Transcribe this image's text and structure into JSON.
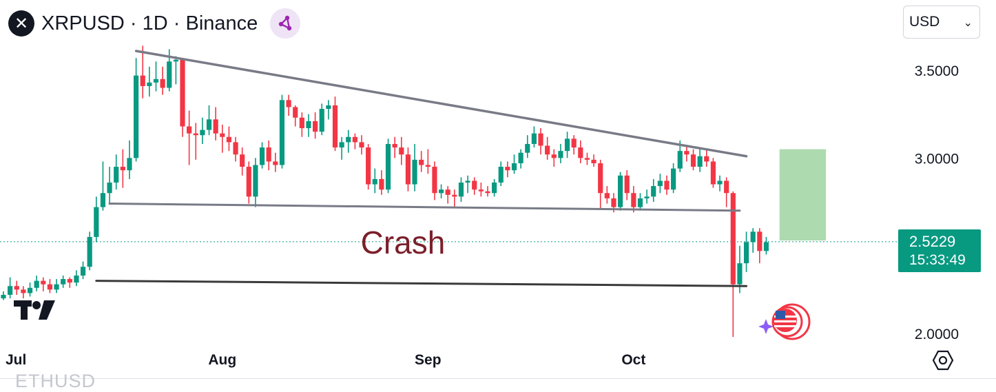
{
  "header": {
    "title": "XRPUSD · 1D · Binance",
    "logo_glyph": "✕",
    "share_icon": "share-nodes-icon"
  },
  "currency_select": {
    "value": "USD",
    "chevron": "⌄"
  },
  "price_badge": {
    "price": "2.5229",
    "countdown": "15:33:49",
    "color": "#089981"
  },
  "watermark_below": "ETHUSD",
  "colors": {
    "up": "#089981",
    "down": "#f23645",
    "trendline": "#787b86",
    "crash_line": "#3a3a3a",
    "crash_text": "#7b1f2a",
    "target_box": "#a5d6a7",
    "price_line": "#089981"
  },
  "chart_data": {
    "type": "candlestick",
    "symbol": "XRPUSD",
    "interval": "1D",
    "exchange": "Binance",
    "y_ticks": [
      "3.5000",
      "3.0000",
      "2.0000"
    ],
    "y_tick_values": [
      3.5,
      3.0,
      2.0
    ],
    "ylim": [
      1.98,
      3.6
    ],
    "x_ticks": [
      "Jul",
      "Aug",
      "Sep",
      "Oct"
    ],
    "x_tick_index": [
      1,
      33,
      64,
      95
    ],
    "last_price": 2.5229,
    "candles": [
      [
        2.2,
        2.22,
        2.24,
        2.19
      ],
      [
        2.22,
        2.27,
        2.32,
        2.2
      ],
      [
        2.27,
        2.25,
        2.3,
        2.22
      ],
      [
        2.25,
        2.23,
        2.27,
        2.2
      ],
      [
        2.23,
        2.26,
        2.29,
        2.21
      ],
      [
        2.26,
        2.3,
        2.33,
        2.24
      ],
      [
        2.3,
        2.28,
        2.32,
        2.24
      ],
      [
        2.28,
        2.25,
        2.31,
        2.23
      ],
      [
        2.25,
        2.28,
        2.31,
        2.23
      ],
      [
        2.28,
        2.31,
        2.33,
        2.26
      ],
      [
        2.31,
        2.29,
        2.32,
        2.26
      ],
      [
        2.29,
        2.33,
        2.36,
        2.27
      ],
      [
        2.33,
        2.38,
        2.41,
        2.31
      ],
      [
        2.38,
        2.55,
        2.58,
        2.36
      ],
      [
        2.55,
        2.72,
        2.78,
        2.52
      ],
      [
        2.72,
        2.8,
        2.98,
        2.7
      ],
      [
        2.8,
        2.86,
        2.95,
        2.74
      ],
      [
        2.86,
        2.95,
        3.02,
        2.82
      ],
      [
        2.95,
        2.93,
        3.05,
        2.83
      ],
      [
        2.93,
        3.0,
        3.1,
        2.88
      ],
      [
        3.0,
        3.47,
        3.57,
        2.98
      ],
      [
        3.47,
        3.41,
        3.64,
        3.34
      ],
      [
        3.41,
        3.43,
        3.52,
        3.35
      ],
      [
        3.43,
        3.45,
        3.55,
        3.38
      ],
      [
        3.45,
        3.4,
        3.52,
        3.36
      ],
      [
        3.4,
        3.55,
        3.62,
        3.38
      ],
      [
        3.55,
        3.56,
        3.58,
        3.42
      ],
      [
        3.56,
        3.18,
        3.57,
        3.12
      ],
      [
        3.18,
        3.14,
        3.27,
        2.96
      ],
      [
        3.14,
        3.13,
        3.2,
        2.99
      ],
      [
        3.13,
        3.16,
        3.23,
        3.08
      ],
      [
        3.16,
        3.22,
        3.3,
        3.13
      ],
      [
        3.22,
        3.14,
        3.29,
        3.1
      ],
      [
        3.14,
        3.12,
        3.19,
        3.03
      ],
      [
        3.12,
        3.09,
        3.18,
        3.04
      ],
      [
        3.09,
        3.02,
        3.12,
        2.98
      ],
      [
        3.02,
        2.95,
        3.06,
        2.9
      ],
      [
        2.95,
        2.78,
        2.98,
        2.74
      ],
      [
        2.78,
        2.96,
        3.0,
        2.72
      ],
      [
        2.96,
        3.06,
        3.09,
        2.94
      ],
      [
        3.06,
        2.98,
        3.1,
        2.93
      ],
      [
        2.98,
        2.96,
        3.03,
        2.92
      ],
      [
        2.96,
        3.33,
        3.36,
        2.94
      ],
      [
        3.33,
        3.29,
        3.36,
        3.24
      ],
      [
        3.29,
        3.23,
        3.3,
        3.18
      ],
      [
        3.23,
        3.17,
        3.26,
        3.12
      ],
      [
        3.17,
        3.21,
        3.25,
        3.12
      ],
      [
        3.21,
        3.15,
        3.26,
        3.11
      ],
      [
        3.15,
        3.28,
        3.31,
        3.13
      ],
      [
        3.28,
        3.3,
        3.33,
        3.22
      ],
      [
        3.3,
        3.06,
        3.35,
        3.04
      ],
      [
        3.06,
        3.09,
        3.12,
        2.99
      ],
      [
        3.09,
        3.12,
        3.16,
        3.03
      ],
      [
        3.12,
        3.09,
        3.14,
        3.05
      ],
      [
        3.09,
        3.06,
        3.13,
        3.02
      ],
      [
        3.06,
        2.85,
        3.08,
        2.82
      ],
      [
        2.85,
        2.88,
        2.94,
        2.8
      ],
      [
        2.88,
        2.82,
        2.93,
        2.79
      ],
      [
        2.82,
        3.08,
        3.11,
        2.8
      ],
      [
        3.08,
        3.06,
        3.12,
        3.0
      ],
      [
        3.06,
        3.02,
        3.12,
        2.96
      ],
      [
        3.02,
        2.85,
        3.06,
        2.81
      ],
      [
        2.85,
        2.99,
        3.08,
        2.81
      ],
      [
        2.99,
        2.96,
        3.04,
        2.92
      ],
      [
        2.96,
        2.95,
        3.05,
        2.91
      ],
      [
        2.95,
        2.8,
        2.98,
        2.76
      ],
      [
        2.8,
        2.82,
        2.85,
        2.77
      ],
      [
        2.82,
        2.79,
        2.84,
        2.74
      ],
      [
        2.79,
        2.78,
        2.82,
        2.72
      ],
      [
        2.78,
        2.86,
        2.89,
        2.75
      ],
      [
        2.86,
        2.87,
        2.9,
        2.8
      ],
      [
        2.87,
        2.82,
        2.89,
        2.79
      ],
      [
        2.82,
        2.81,
        2.86,
        2.78
      ],
      [
        2.81,
        2.8,
        2.84,
        2.78
      ],
      [
        2.8,
        2.86,
        2.88,
        2.78
      ],
      [
        2.86,
        2.95,
        2.98,
        2.84
      ],
      [
        2.95,
        2.93,
        2.98,
        2.89
      ],
      [
        2.93,
        2.97,
        3.02,
        2.91
      ],
      [
        2.97,
        3.03,
        3.05,
        2.94
      ],
      [
        3.03,
        3.08,
        3.13,
        3.0
      ],
      [
        3.08,
        3.14,
        3.18,
        3.06
      ],
      [
        3.14,
        3.07,
        3.17,
        3.02
      ],
      [
        3.07,
        3.02,
        3.12,
        2.99
      ],
      [
        3.02,
        3.0,
        3.05,
        2.95
      ],
      [
        3.0,
        3.04,
        3.08,
        2.97
      ],
      [
        3.04,
        3.11,
        3.15,
        3.0
      ],
      [
        3.11,
        3.06,
        3.13,
        3.02
      ],
      [
        3.06,
        3.0,
        3.1,
        2.97
      ],
      [
        3.0,
        2.99,
        3.03,
        2.96
      ],
      [
        2.99,
        2.97,
        3.02,
        2.95
      ],
      [
        2.97,
        2.8,
        2.99,
        2.71
      ],
      [
        2.8,
        2.77,
        2.84,
        2.74
      ],
      [
        2.77,
        2.72,
        2.8,
        2.69
      ],
      [
        2.72,
        2.9,
        2.92,
        2.7
      ],
      [
        2.9,
        2.8,
        2.93,
        2.76
      ],
      [
        2.8,
        2.72,
        2.84,
        2.69
      ],
      [
        2.72,
        2.77,
        2.8,
        2.7
      ],
      [
        2.77,
        2.78,
        2.82,
        2.74
      ],
      [
        2.78,
        2.84,
        2.88,
        2.75
      ],
      [
        2.84,
        2.87,
        2.91,
        2.8
      ],
      [
        2.87,
        2.82,
        2.9,
        2.79
      ],
      [
        2.82,
        2.94,
        2.97,
        2.8
      ],
      [
        2.94,
        3.04,
        3.1,
        2.92
      ],
      [
        3.04,
        3.02,
        3.07,
        2.98
      ],
      [
        3.02,
        2.95,
        3.05,
        2.93
      ],
      [
        2.95,
        3.01,
        3.06,
        2.92
      ],
      [
        3.01,
        2.98,
        3.05,
        2.95
      ],
      [
        2.98,
        2.85,
        3.0,
        2.83
      ],
      [
        2.85,
        2.87,
        2.9,
        2.81
      ],
      [
        2.87,
        2.8,
        2.89,
        2.72
      ],
      [
        2.8,
        2.28,
        2.81,
        1.98
      ],
      [
        2.28,
        2.4,
        2.5,
        2.23
      ],
      [
        2.4,
        2.52,
        2.58,
        2.35
      ],
      [
        2.52,
        2.58,
        2.6,
        2.46
      ],
      [
        2.58,
        2.47,
        2.6,
        2.4
      ],
      [
        2.47,
        2.52,
        2.55,
        2.45
      ]
    ],
    "annotations": {
      "descending_trendline": {
        "from": [
          20,
          3.61
        ],
        "to": [
          112,
          3.01
        ]
      },
      "support_line": {
        "from": [
          16,
          2.74
        ],
        "to": [
          111,
          2.7
        ]
      },
      "crash_line": {
        "from": [
          14,
          2.3
        ],
        "to": [
          112,
          2.27
        ]
      },
      "crash_label": "Crash",
      "target_zone": {
        "x_from": 117,
        "x_to": 124,
        "y_low": 2.53,
        "y_high": 3.05
      }
    }
  }
}
